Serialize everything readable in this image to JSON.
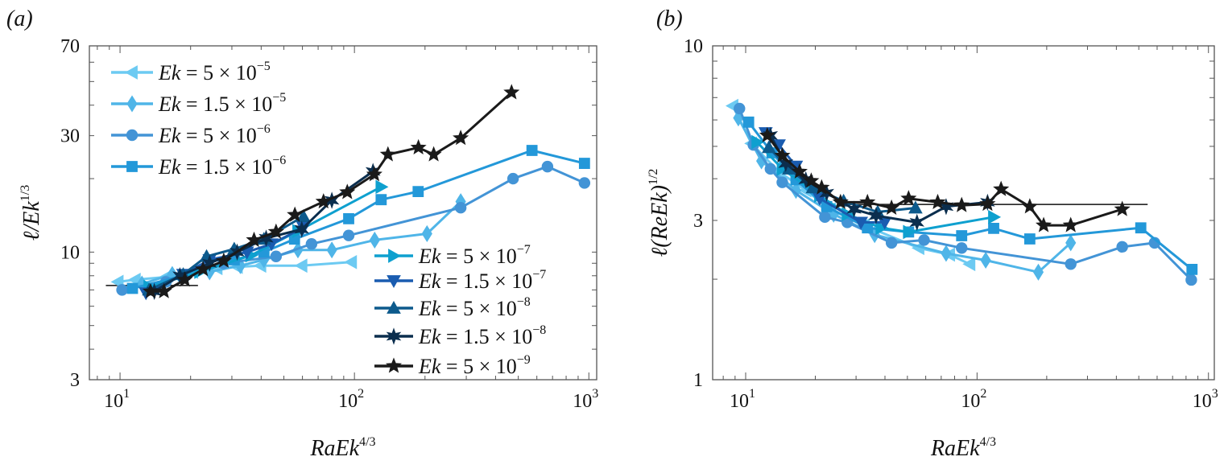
{
  "chart_data": [
    {
      "type": "line",
      "panel_label": "(a)",
      "xscale": "log",
      "yscale": "log",
      "xlabel": {
        "base": "RaEk",
        "exp": "4/3"
      },
      "ylabel": {
        "base": "ℓ/Ek",
        "exp": "1/3"
      },
      "xlim": [
        7.4,
        1080
      ],
      "ylim": [
        3,
        70
      ],
      "xticks": [
        {
          "base": "10",
          "exp": "1",
          "value": 10
        },
        {
          "base": "10",
          "exp": "2",
          "value": 100
        },
        {
          "base": "10",
          "exp": "3",
          "value": 1000
        }
      ],
      "yticks": [
        {
          "label": "3",
          "value": 3
        },
        {
          "label": "10",
          "value": 10
        },
        {
          "label": "30",
          "value": 30
        },
        {
          "label": "70",
          "value": 70
        }
      ],
      "grid": false,
      "legend_placement": "top-left and bottom-right",
      "reference_line": {
        "x": [
          8.7,
          21.5
        ],
        "y": [
          7.3,
          7.3
        ],
        "color": "#111111"
      },
      "series": [
        {
          "name": "Ek = 5 × 10",
          "exp": "−5",
          "marker": "triangle-left",
          "color": "#6ccaf2",
          "x": [
            9.8,
            11.6,
            15.7,
            20.4,
            25.9,
            31.6,
            39.8,
            59.6,
            97
          ],
          "y": [
            7.55,
            7.7,
            7.9,
            8.3,
            8.6,
            8.7,
            8.8,
            8.8,
            9.1
          ]
        },
        {
          "name": "Ek = 1.5 × 10",
          "exp": "−5",
          "marker": "diamond",
          "color": "#4fb5e8",
          "x": [
            12.4,
            16.7,
            24.1,
            32.6,
            41.1,
            57.4,
            80.1,
            122,
            204,
            284
          ],
          "y": [
            7.4,
            8.1,
            8.3,
            8.8,
            9.3,
            10.2,
            10.2,
            11.2,
            11.9,
            16.1
          ]
        },
        {
          "name": "Ek = 5 × 10",
          "exp": "−6",
          "marker": "circle",
          "color": "#4394d6",
          "x": [
            10.2,
            15.7,
            27.6,
            46.3,
            65.6,
            94.5,
            284,
            475,
            666,
            958
          ],
          "y": [
            7.0,
            7.55,
            9.0,
            9.6,
            10.8,
            11.7,
            15.2,
            20.0,
            22.4,
            19.2
          ]
        },
        {
          "name": "Ek = 1.5 × 10",
          "exp": "−6",
          "marker": "square",
          "color": "#2398d9",
          "x": [
            11.3,
            18.6,
            30.7,
            41.1,
            55.5,
            94.5,
            130,
            187,
            572,
            958
          ],
          "y": [
            7.1,
            8.0,
            9.3,
            10.0,
            11.3,
            13.7,
            16.4,
            17.7,
            26.1,
            23.1
          ]
        },
        {
          "name": "Ek = 5 × 10",
          "exp": "−7",
          "marker": "triangle-right",
          "color": "#0ea0cf",
          "x": [
            13.3,
            21.9,
            36.2,
            57.4,
            130
          ],
          "y": [
            7.2,
            8.3,
            9.7,
            12.2,
            18.5
          ]
        },
        {
          "name": "Ek = 1.5 × 10",
          "exp": "−7",
          "marker": "triangle-down",
          "color": "#1a5cb0",
          "x": [
            12.9,
            18.6,
            24.1,
            34.8,
            44.3,
            60.6
          ],
          "y": [
            6.8,
            8.1,
            9.3,
            10.0,
            10.8,
            12.6
          ]
        },
        {
          "name": "Ek = 5 × 10",
          "exp": "−8",
          "marker": "triangle-up",
          "color": "#0d5a8c",
          "x": [
            13.3,
            18.6,
            23.4,
            30.7,
            41.1,
            60.6
          ],
          "y": [
            7.0,
            8.1,
            9.6,
            10.3,
            11.3,
            14.0
          ]
        },
        {
          "name": "Ek = 1.5 × 10",
          "exp": "−8",
          "marker": "hexagram",
          "color": "#0b2e4e",
          "x": [
            14.0,
            18.0,
            24.1,
            31.6,
            42.0,
            59.6,
            80.1,
            120
          ],
          "y": [
            6.9,
            8.0,
            9.0,
            10.0,
            11.4,
            12.4,
            16.3,
            21.4
          ]
        },
        {
          "name": "Ek = 5 × 10",
          "exp": "−9",
          "marker": "pentagram",
          "color": "#1a1a1a",
          "x": [
            13.5,
            15.4,
            18.9,
            22.6,
            27.7,
            37.3,
            46.3,
            55.7,
            73.8,
            93.2,
            121.6,
            139,
            187.5,
            217.8,
            284,
            468
          ],
          "y": [
            6.9,
            6.9,
            7.7,
            8.5,
            9.2,
            11.2,
            12.1,
            14.2,
            16.1,
            17.6,
            20.8,
            25.1,
            26.8,
            25.1,
            29.3,
            45.1
          ]
        }
      ]
    },
    {
      "type": "line",
      "panel_label": "(b)",
      "xscale": "log",
      "yscale": "log",
      "xlabel": {
        "base": "RaEk",
        "exp": "4/3"
      },
      "ylabel": {
        "base": "ℓ(ReEk)",
        "exp": "1/2"
      },
      "xlim": [
        7.2,
        1060
      ],
      "ylim": [
        1,
        10
      ],
      "xticks": [
        {
          "base": "10",
          "exp": "1",
          "value": 10
        },
        {
          "base": "10",
          "exp": "2",
          "value": 100
        },
        {
          "base": "10",
          "exp": "3",
          "value": 1000
        }
      ],
      "yticks": [
        {
          "label": "1",
          "value": 1
        },
        {
          "label": "3",
          "value": 3
        },
        {
          "label": "10",
          "value": 10
        }
      ],
      "grid": false,
      "reference_line": {
        "x": [
          25.7,
          546
        ],
        "y": [
          3.35,
          3.35
        ],
        "color": "#111111"
      },
      "series": [
        {
          "name": "Ek = 5 × 10",
          "exp": "−5",
          "marker": "triangle-left",
          "color": "#6ccaf2",
          "x": [
            8.8,
            10.6,
            13.9,
            18.2,
            23.2,
            32.5,
            56,
            76,
            93
          ],
          "y": [
            6.61,
            5.1,
            4.2,
            3.69,
            3.24,
            2.9,
            2.48,
            2.37,
            2.22
          ]
        },
        {
          "name": "Ek = 1.5 × 10",
          "exp": "−5",
          "marker": "diamond",
          "color": "#4fb5e8",
          "x": [
            9.3,
            11.7,
            16.5,
            24.0,
            36.1,
            73.5,
            109,
            184,
            254
          ],
          "y": [
            6.08,
            4.52,
            3.69,
            3.13,
            2.72,
            2.39,
            2.28,
            2.1,
            2.57
          ]
        },
        {
          "name": "Ek = 5 × 10",
          "exp": "−6",
          "marker": "circle",
          "color": "#4394d6",
          "x": [
            9.4,
            10.8,
            12.8,
            14.4,
            22.0,
            27.5,
            42.7,
            59,
            85.8,
            254,
            424,
            585,
            843
          ],
          "y": [
            6.49,
            5.05,
            4.28,
            3.9,
            3.07,
            2.96,
            2.57,
            2.62,
            2.48,
            2.22,
            2.5,
            2.57,
            1.99
          ]
        },
        {
          "name": "Ek = 1.5 × 10",
          "exp": "−6",
          "marker": "square",
          "color": "#2398d9",
          "x": [
            10.3,
            13.0,
            16.5,
            22.4,
            33.6,
            50.6,
            85.8,
            118,
            169,
            510,
            849
          ],
          "y": [
            5.91,
            4.78,
            3.97,
            3.3,
            2.85,
            2.77,
            2.7,
            2.84,
            2.64,
            2.85,
            2.14
          ]
        },
        {
          "name": "Ek = 5 × 10",
          "exp": "−7",
          "marker": "triangle-right",
          "color": "#0ea0cf",
          "x": [
            11.2,
            14.4,
            20.9,
            27.5,
            38.5,
            50.6,
            118
          ],
          "y": [
            5.15,
            4.28,
            3.56,
            3.13,
            2.85,
            2.77,
            3.07
          ]
        },
        {
          "name": "Ek = 1.5 × 10",
          "exp": "−7",
          "marker": "triangle-down",
          "color": "#1a5cb0",
          "x": [
            12.2,
            13.9,
            16.5,
            20.9,
            31.5,
            39.9
          ],
          "y": [
            5.49,
            5.05,
            4.36,
            3.49,
            2.96,
            2.96
          ]
        },
        {
          "name": "Ek = 5 × 10",
          "exp": "−8",
          "marker": "triangle-up",
          "color": "#0d5a8c",
          "x": [
            12.6,
            15.4,
            19.5,
            26.5,
            37.2,
            54.2
          ],
          "y": [
            4.96,
            4.28,
            3.76,
            3.43,
            3.18,
            3.27
          ]
        },
        {
          "name": "Ek = 1.5 × 10",
          "exp": "−8",
          "marker": "hexagram",
          "color": "#0b2e4e",
          "x": [
            12.8,
            14.9,
            18.2,
            22.4,
            29.4,
            36.6,
            55,
            73.5,
            111
          ],
          "y": [
            5.39,
            4.44,
            3.97,
            3.62,
            3.24,
            3.1,
            2.96,
            3.3,
            3.4
          ]
        },
        {
          "name": "Ek = 5 × 10",
          "exp": "−9",
          "marker": "pentagram",
          "color": "#1a1a1a",
          "x": [
            12.4,
            14.4,
            17.1,
            19.2,
            21.3,
            25.7,
            33.6,
            42.7,
            50.6,
            67.6,
            85.8,
            111,
            127,
            169,
            194,
            254,
            424
          ],
          "y": [
            5.39,
            4.69,
            4.2,
            3.94,
            3.76,
            3.4,
            3.4,
            3.27,
            3.49,
            3.4,
            3.33,
            3.36,
            3.72,
            3.3,
            2.9,
            2.9,
            3.24
          ]
        }
      ]
    }
  ]
}
